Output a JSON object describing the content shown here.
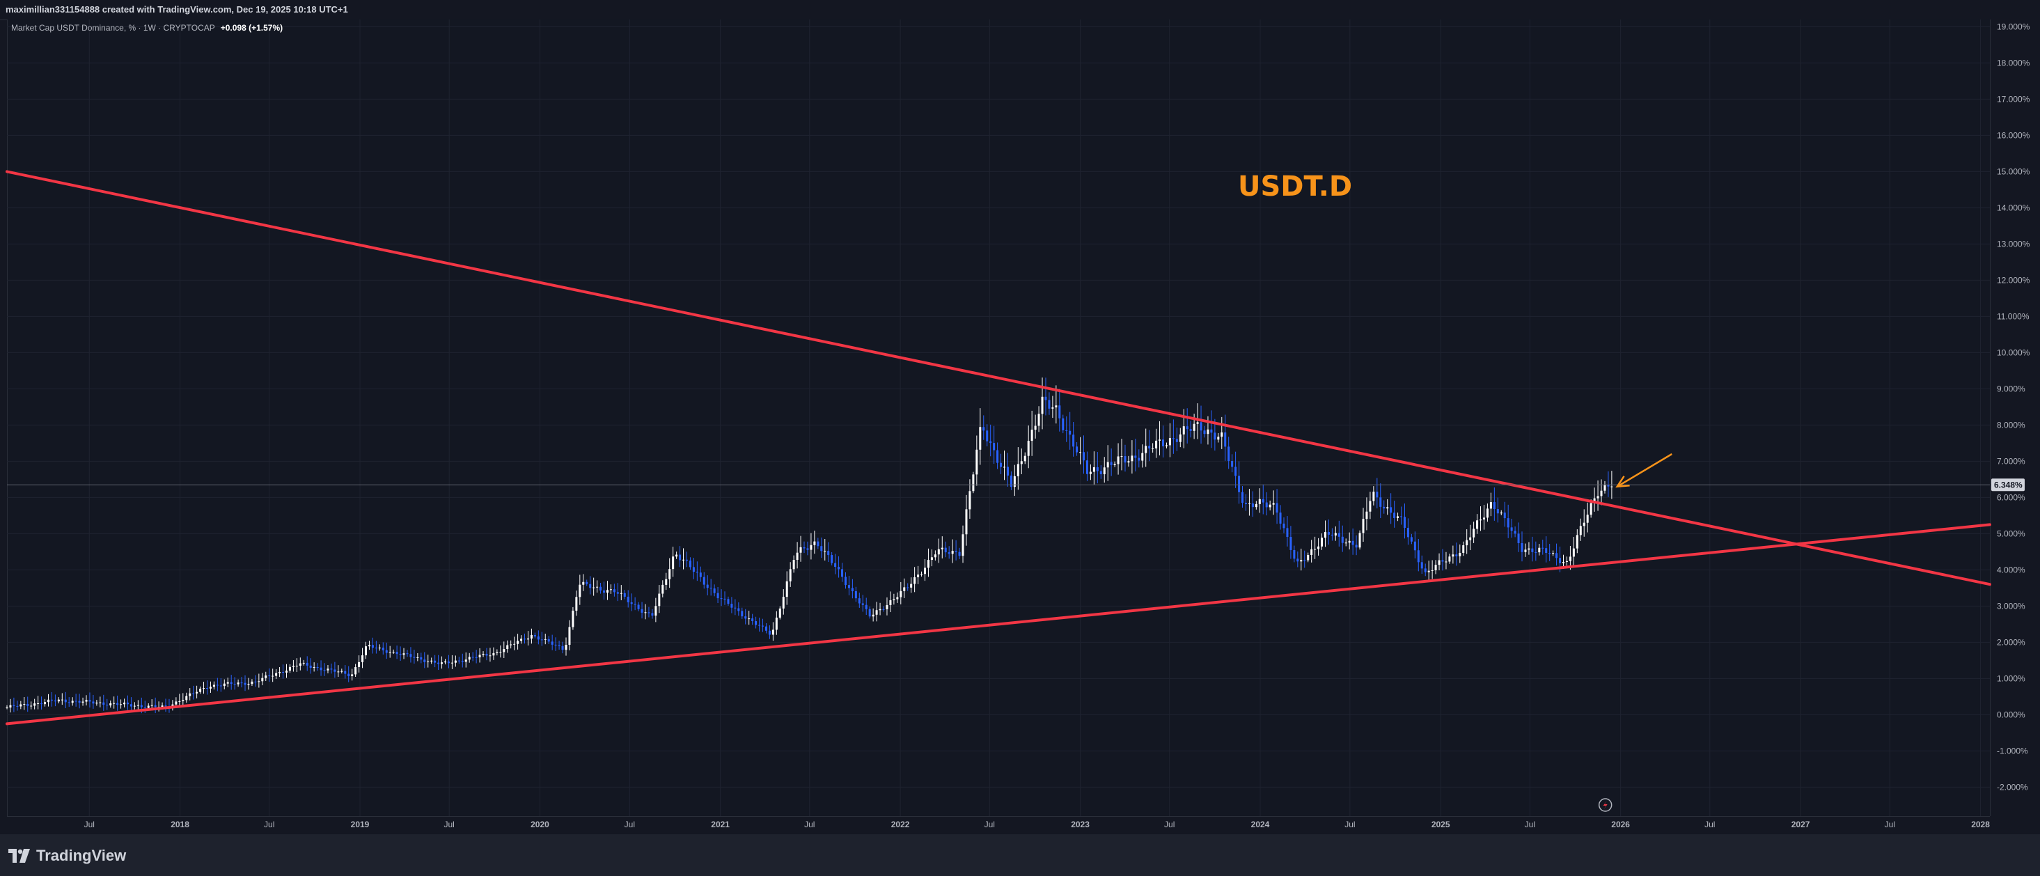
{
  "header": {
    "created_by": "maximillian331154888 created with TradingView.com, Dec 19, 2025 10:18 UTC+1"
  },
  "legend": {
    "symbol": "Market Cap USDT Dominance, % · 1W · CRYPTOCAP",
    "change": "+0.098 (+1.57%)"
  },
  "footer": {
    "brand": "TradingView"
  },
  "colors": {
    "background": "#131722",
    "trendline": "#f23645",
    "up_candle": "#ffffff",
    "down_candle": "#2962ff",
    "annotation": "#f7931a",
    "price_tag": "#d1d4dc"
  },
  "icons": {
    "footer_logo": "tradingview-logo-icon",
    "bottom_marker": "lightning-icon"
  },
  "chart_data": {
    "type": "candlestick",
    "title": "USDT.D",
    "timeframe": "1W",
    "ylim": [
      -2.8,
      19.2
    ],
    "y_axis_labels": [
      "19.000%",
      "18.000%",
      "17.000%",
      "16.000%",
      "15.000%",
      "14.000%",
      "13.000%",
      "12.000%",
      "11.000%",
      "10.000%",
      "9.000%",
      "8.000%",
      "7.000%",
      "6.000%",
      "5.000%",
      "4.000%",
      "3.000%",
      "2.000%",
      "1.000%",
      "0.000%",
      "-1.000%",
      "-2.000%"
    ],
    "y_axis_values": [
      19,
      18,
      17,
      16,
      15,
      14,
      13,
      12,
      11,
      10,
      9,
      8,
      7,
      6,
      5,
      4,
      3,
      2,
      1,
      0,
      -1,
      -2
    ],
    "x_axis_labels": [
      "Jul",
      "2018",
      "Jul",
      "2019",
      "Jul",
      "2020",
      "Jul",
      "2021",
      "Jul",
      "2022",
      "Jul",
      "2023",
      "Jul",
      "2024",
      "Jul",
      "2025",
      "Jul",
      "2026",
      "Jul",
      "2027",
      "Jul",
      "2028"
    ],
    "x_axis_dates": [
      "2017-07-01",
      "2018-01-01",
      "2018-07-01",
      "2019-01-01",
      "2019-07-01",
      "2020-01-01",
      "2020-07-01",
      "2021-01-01",
      "2021-07-01",
      "2022-01-01",
      "2022-07-01",
      "2023-01-01",
      "2023-07-01",
      "2024-01-01",
      "2024-07-01",
      "2025-01-01",
      "2025-07-01",
      "2026-01-01",
      "2026-07-01",
      "2027-01-01",
      "2027-07-01",
      "2028-01-01"
    ],
    "x_range": [
      "2017-01-15",
      "2028-01-20"
    ],
    "current_price": 6.348,
    "current_price_label": "6.348%",
    "trendlines": [
      {
        "name": "descending resistance",
        "start": {
          "date": "2017-01-15",
          "value": 15.0
        },
        "end": {
          "date": "2028-01-20",
          "value": 3.6
        }
      },
      {
        "name": "ascending support",
        "start": {
          "date": "2017-01-15",
          "value": -0.25
        },
        "end": {
          "date": "2028-01-20",
          "value": 5.25
        }
      }
    ],
    "arrow_annotation": {
      "from": {
        "date": "2026-04-15",
        "value": 7.2
      },
      "to": {
        "date": "2025-12-25",
        "value": 6.3
      }
    },
    "price_path": [
      {
        "date": "2017-01-15",
        "value": 0.2
      },
      {
        "date": "2017-05-01",
        "value": 0.4
      },
      {
        "date": "2017-12-01",
        "value": 0.2
      },
      {
        "date": "2018-03-01",
        "value": 0.8
      },
      {
        "date": "2018-06-01",
        "value": 0.9
      },
      {
        "date": "2018-09-01",
        "value": 1.4
      },
      {
        "date": "2018-12-15",
        "value": 1.1
      },
      {
        "date": "2019-01-15",
        "value": 1.9
      },
      {
        "date": "2019-06-15",
        "value": 1.4
      },
      {
        "date": "2019-10-01",
        "value": 1.7
      },
      {
        "date": "2019-12-15",
        "value": 2.2
      },
      {
        "date": "2020-02-20",
        "value": 1.8
      },
      {
        "date": "2020-03-20",
        "value": 3.6
      },
      {
        "date": "2020-06-01",
        "value": 3.4
      },
      {
        "date": "2020-08-15",
        "value": 2.7
      },
      {
        "date": "2020-10-01",
        "value": 4.5
      },
      {
        "date": "2021-01-01",
        "value": 3.2
      },
      {
        "date": "2021-04-15",
        "value": 2.2
      },
      {
        "date": "2021-06-01",
        "value": 4.4
      },
      {
        "date": "2021-07-15",
        "value": 4.8
      },
      {
        "date": "2021-11-01",
        "value": 2.7
      },
      {
        "date": "2022-01-15",
        "value": 3.5
      },
      {
        "date": "2022-03-15",
        "value": 4.5
      },
      {
        "date": "2022-05-01",
        "value": 4.5
      },
      {
        "date": "2022-06-15",
        "value": 8.0
      },
      {
        "date": "2022-08-15",
        "value": 6.3
      },
      {
        "date": "2022-10-15",
        "value": 8.6
      },
      {
        "date": "2022-11-15",
        "value": 8.4
      },
      {
        "date": "2023-01-15",
        "value": 6.7
      },
      {
        "date": "2023-04-15",
        "value": 7.1
      },
      {
        "date": "2023-06-15",
        "value": 7.5
      },
      {
        "date": "2023-09-01",
        "value": 8.0
      },
      {
        "date": "2023-10-15",
        "value": 7.6
      },
      {
        "date": "2023-12-01",
        "value": 5.8
      },
      {
        "date": "2024-02-01",
        "value": 5.8
      },
      {
        "date": "2024-03-15",
        "value": 4.1
      },
      {
        "date": "2024-05-15",
        "value": 5.0
      },
      {
        "date": "2024-07-15",
        "value": 4.7
      },
      {
        "date": "2024-08-15",
        "value": 6.1
      },
      {
        "date": "2024-10-15",
        "value": 5.3
      },
      {
        "date": "2024-12-01",
        "value": 3.9
      },
      {
        "date": "2025-02-15",
        "value": 4.6
      },
      {
        "date": "2025-04-15",
        "value": 5.9
      },
      {
        "date": "2025-06-15",
        "value": 4.6
      },
      {
        "date": "2025-08-01",
        "value": 4.5
      },
      {
        "date": "2025-09-15",
        "value": 4.2
      },
      {
        "date": "2025-10-15",
        "value": 5.2
      },
      {
        "date": "2025-11-15",
        "value": 6.2
      },
      {
        "date": "2025-12-15",
        "value": 6.35
      }
    ],
    "grid": true,
    "legend_position": "top-left"
  }
}
